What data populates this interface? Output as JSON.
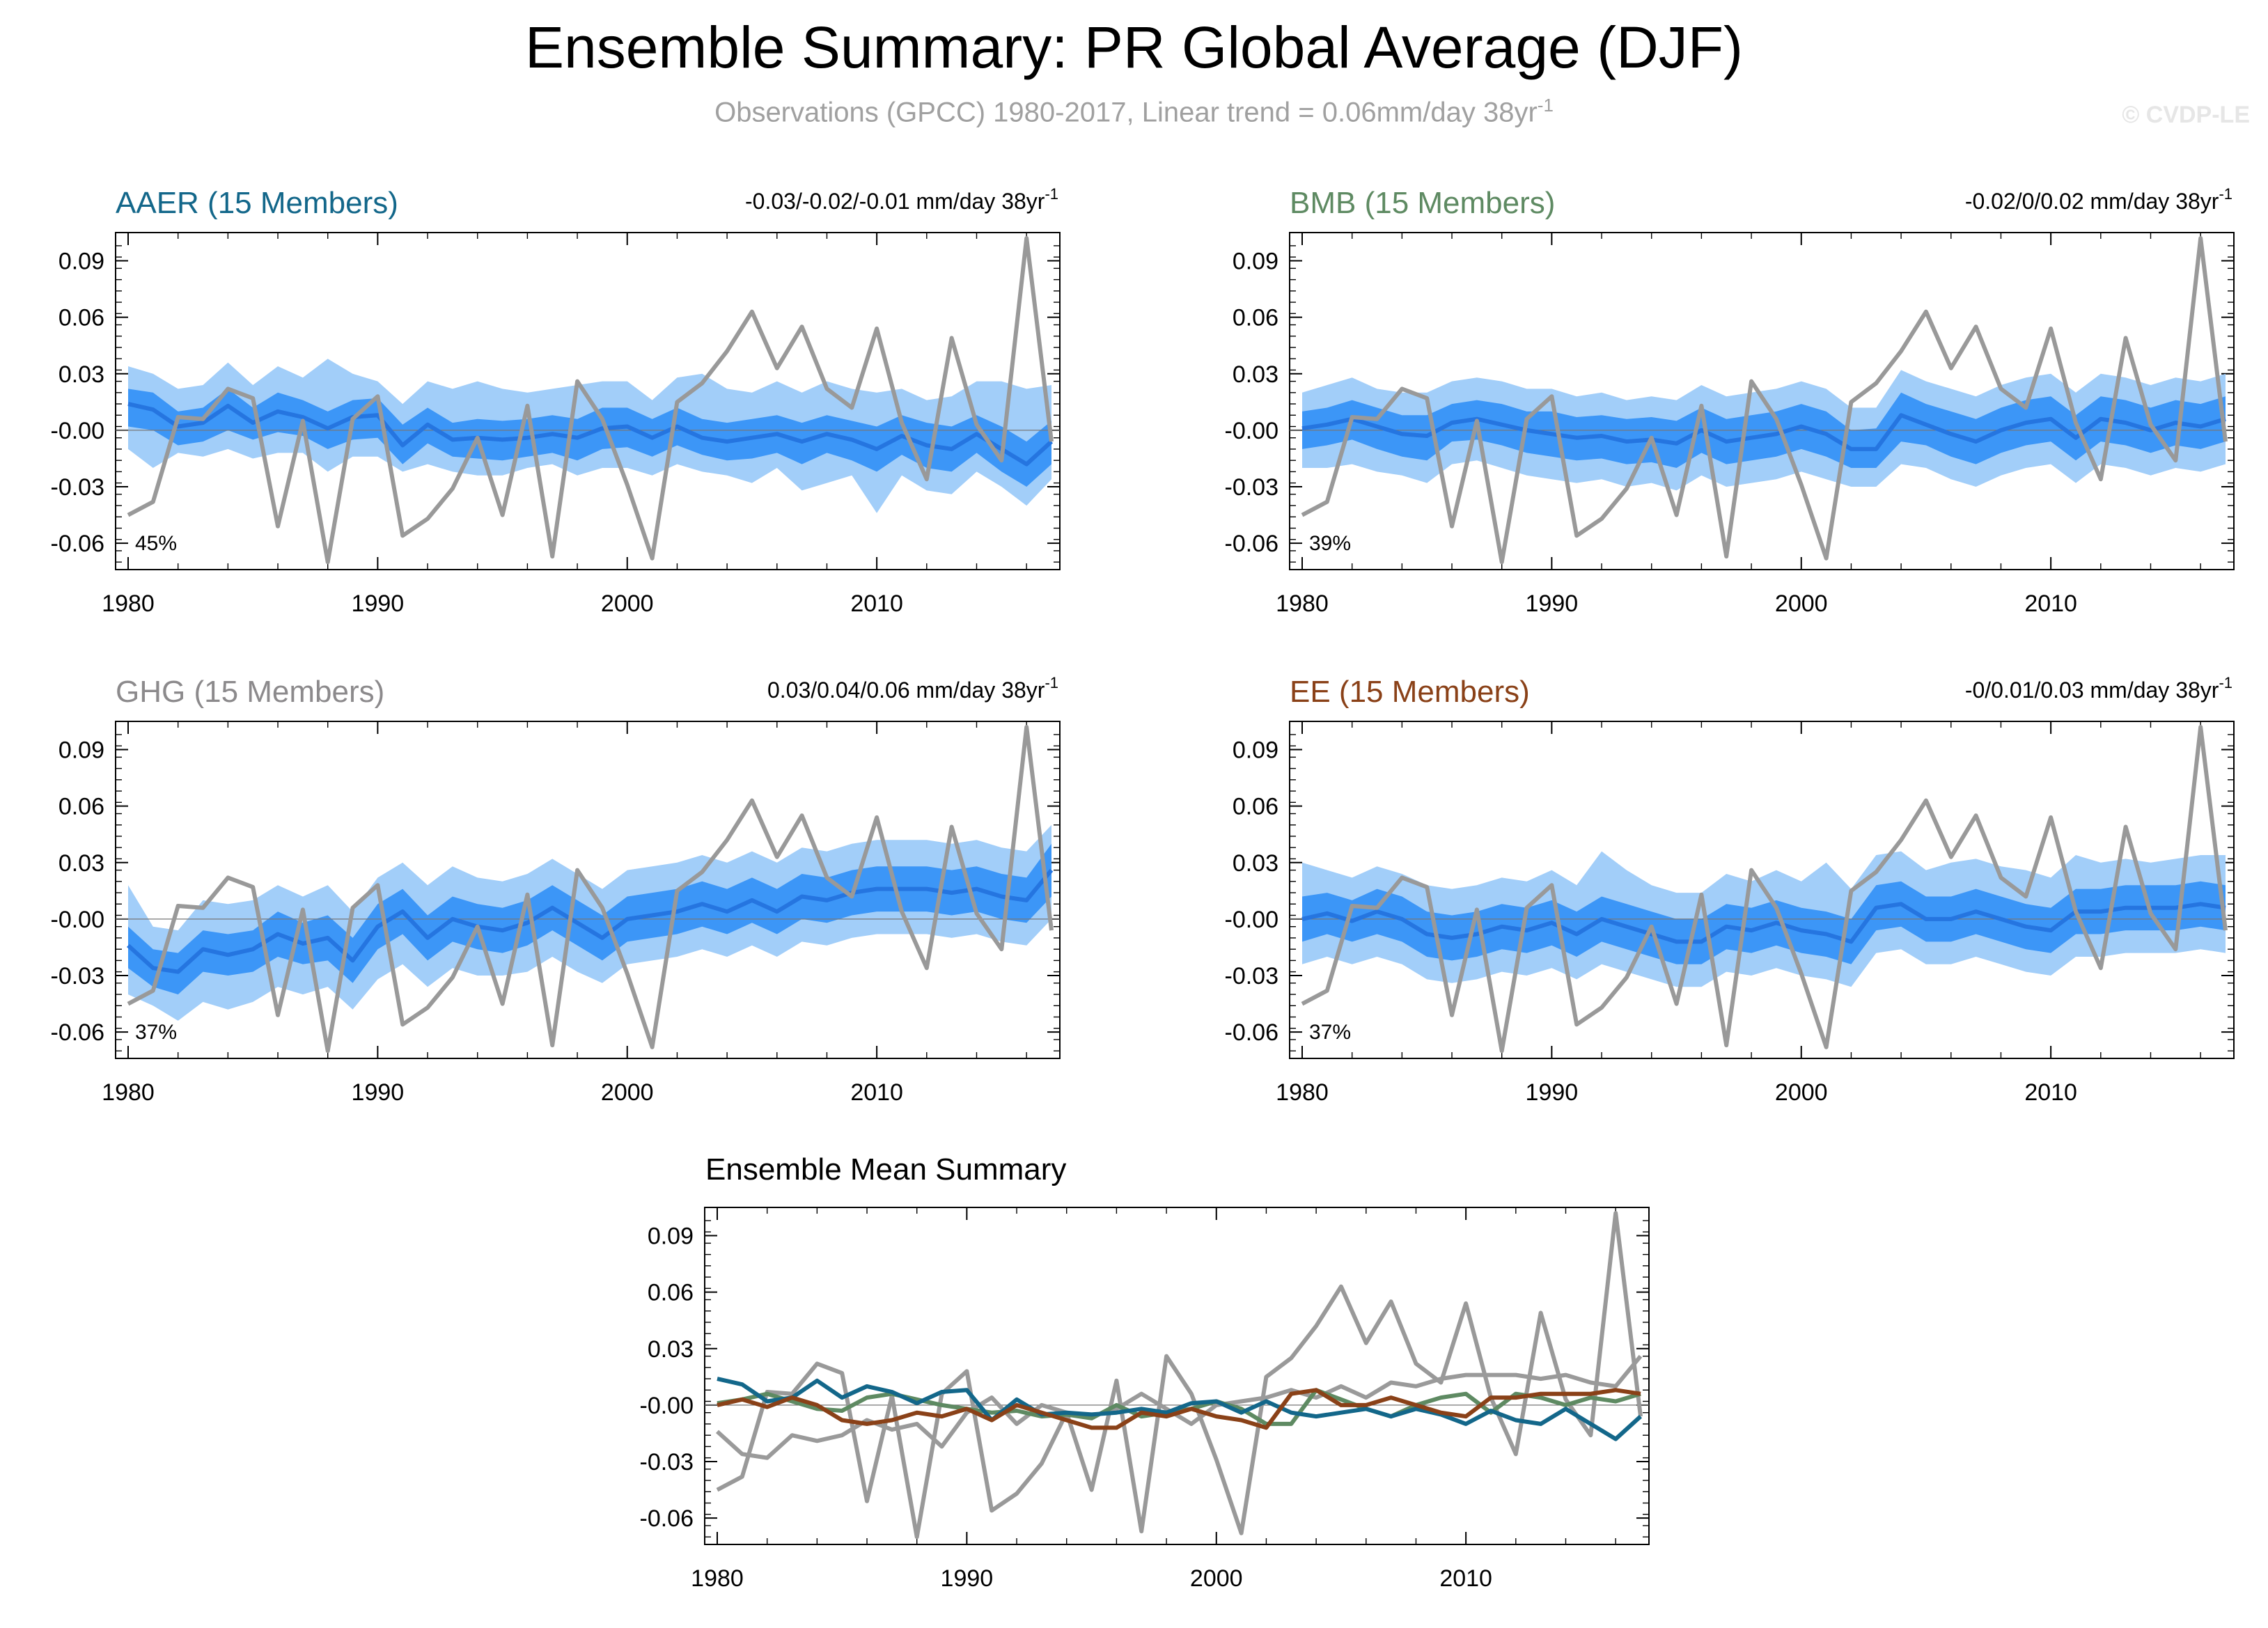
{
  "title": "Ensemble Summary: PR Global Average (DJF)",
  "subtitle": {
    "text": "Observations (GPCC) 1980-2017, Linear trend = 0.06mm/day 38yr",
    "sup": "-1"
  },
  "credit": "© CVDP-LE",
  "colors": {
    "band_outer": "#a2cef9",
    "band_inner": "#3c96f7",
    "ens_mean": "#2575e0",
    "observations": "#999999",
    "AAER": "#13678a",
    "BMB": "#5e8a62",
    "GHG": "#8c8a8c",
    "EE": "#8a4118"
  },
  "chart_data": [
    {
      "id": "AAER",
      "type": "line",
      "title": "AAER (15 Members)",
      "trend_label": "-0.03/-0.02/-0.01 mm/day 38yr",
      "trend_sup": "-1",
      "percent": "45%",
      "x_ticks": [
        "1980",
        "1990",
        "2000",
        "2010"
      ],
      "y_ticks": [
        "0.09",
        "0.06",
        "0.03",
        "-0.00",
        "-0.03",
        "-0.06"
      ],
      "xlim": [
        1980,
        2017
      ],
      "ylim": [
        -0.074,
        0.105
      ],
      "ens_mean": [
        0.014,
        0.011,
        0.002,
        0.004,
        0.013,
        0.004,
        0.01,
        0.007,
        0.001,
        0.007,
        0.008,
        -0.008,
        0.003,
        -0.005,
        -0.004,
        -0.005,
        -0.004,
        -0.002,
        -0.004,
        0.001,
        0.002,
        -0.004,
        0.002,
        -0.004,
        -0.006,
        -0.004,
        -0.002,
        -0.006,
        -0.002,
        -0.005,
        -0.01,
        -0.003,
        -0.008,
        -0.01,
        -0.002,
        -0.01,
        -0.018,
        -0.006
      ],
      "inner_lo": [
        0.002,
        0.0,
        -0.008,
        -0.006,
        0.0,
        -0.005,
        -0.001,
        -0.003,
        -0.01,
        -0.005,
        -0.004,
        -0.018,
        -0.007,
        -0.014,
        -0.015,
        -0.016,
        -0.014,
        -0.012,
        -0.016,
        -0.01,
        -0.009,
        -0.014,
        -0.008,
        -0.013,
        -0.016,
        -0.015,
        -0.012,
        -0.018,
        -0.012,
        -0.016,
        -0.022,
        -0.013,
        -0.02,
        -0.022,
        -0.012,
        -0.022,
        -0.03,
        -0.018
      ],
      "inner_hi": [
        0.022,
        0.02,
        0.01,
        0.012,
        0.022,
        0.012,
        0.02,
        0.016,
        0.01,
        0.016,
        0.017,
        0.003,
        0.012,
        0.004,
        0.006,
        0.005,
        0.006,
        0.008,
        0.006,
        0.012,
        0.012,
        0.006,
        0.012,
        0.006,
        0.004,
        0.006,
        0.008,
        0.004,
        0.008,
        0.005,
        0.002,
        0.008,
        0.004,
        0.002,
        0.008,
        0.002,
        -0.006,
        0.005
      ],
      "outer_lo": [
        -0.01,
        -0.02,
        -0.012,
        -0.014,
        -0.01,
        -0.015,
        -0.012,
        -0.012,
        -0.022,
        -0.014,
        -0.014,
        -0.022,
        -0.018,
        -0.022,
        -0.024,
        -0.024,
        -0.02,
        -0.018,
        -0.024,
        -0.02,
        -0.02,
        -0.024,
        -0.018,
        -0.022,
        -0.024,
        -0.028,
        -0.02,
        -0.032,
        -0.028,
        -0.024,
        -0.044,
        -0.024,
        -0.032,
        -0.034,
        -0.022,
        -0.03,
        -0.04,
        -0.026
      ],
      "outer_hi": [
        0.034,
        0.03,
        0.022,
        0.024,
        0.036,
        0.024,
        0.034,
        0.028,
        0.038,
        0.03,
        0.026,
        0.014,
        0.026,
        0.022,
        0.026,
        0.022,
        0.02,
        0.022,
        0.024,
        0.026,
        0.026,
        0.016,
        0.028,
        0.03,
        0.022,
        0.02,
        0.026,
        0.02,
        0.026,
        0.022,
        0.02,
        0.022,
        0.016,
        0.018,
        0.026,
        0.026,
        0.022,
        0.024
      ]
    },
    {
      "id": "BMB",
      "type": "line",
      "title": "BMB (15 Members)",
      "trend_label": "-0.02/0/0.02 mm/day 38yr",
      "trend_sup": "-1",
      "percent": "39%",
      "x_ticks": [
        "1980",
        "1990",
        "2000",
        "2010"
      ],
      "y_ticks": [
        "0.09",
        "0.06",
        "0.03",
        "-0.00",
        "-0.03",
        "-0.06"
      ],
      "xlim": [
        1980,
        2017
      ],
      "ylim": [
        -0.074,
        0.105
      ],
      "ens_mean": [
        0.001,
        0.003,
        0.006,
        0.002,
        -0.002,
        -0.003,
        0.004,
        0.006,
        0.003,
        0.0,
        -0.002,
        -0.004,
        -0.003,
        -0.006,
        -0.005,
        -0.007,
        0.0,
        -0.006,
        -0.004,
        -0.002,
        0.002,
        -0.002,
        -0.01,
        -0.01,
        0.008,
        0.003,
        -0.002,
        -0.006,
        0.0,
        0.004,
        0.006,
        -0.004,
        0.006,
        0.004,
        0.0,
        0.004,
        0.002,
        0.006
      ],
      "inner_lo": [
        -0.01,
        -0.008,
        -0.005,
        -0.01,
        -0.014,
        -0.016,
        -0.006,
        -0.005,
        -0.008,
        -0.012,
        -0.014,
        -0.016,
        -0.015,
        -0.018,
        -0.017,
        -0.02,
        -0.012,
        -0.018,
        -0.016,
        -0.014,
        -0.01,
        -0.014,
        -0.02,
        -0.02,
        -0.006,
        -0.008,
        -0.014,
        -0.018,
        -0.012,
        -0.008,
        -0.006,
        -0.016,
        -0.006,
        -0.008,
        -0.012,
        -0.008,
        -0.01,
        -0.006
      ],
      "inner_hi": [
        0.01,
        0.012,
        0.016,
        0.012,
        0.008,
        0.008,
        0.014,
        0.016,
        0.014,
        0.01,
        0.01,
        0.007,
        0.008,
        0.006,
        0.007,
        0.005,
        0.012,
        0.006,
        0.008,
        0.01,
        0.014,
        0.01,
        0.0,
        0.001,
        0.02,
        0.014,
        0.01,
        0.006,
        0.012,
        0.016,
        0.018,
        0.008,
        0.018,
        0.016,
        0.012,
        0.016,
        0.014,
        0.018
      ],
      "outer_lo": [
        -0.02,
        -0.02,
        -0.018,
        -0.022,
        -0.024,
        -0.028,
        -0.018,
        -0.016,
        -0.02,
        -0.024,
        -0.026,
        -0.028,
        -0.026,
        -0.03,
        -0.028,
        -0.032,
        -0.024,
        -0.03,
        -0.028,
        -0.026,
        -0.022,
        -0.026,
        -0.03,
        -0.03,
        -0.018,
        -0.02,
        -0.026,
        -0.03,
        -0.024,
        -0.02,
        -0.018,
        -0.028,
        -0.018,
        -0.02,
        -0.024,
        -0.02,
        -0.022,
        -0.018
      ],
      "outer_hi": [
        0.02,
        0.024,
        0.028,
        0.022,
        0.02,
        0.02,
        0.026,
        0.028,
        0.026,
        0.022,
        0.022,
        0.018,
        0.02,
        0.016,
        0.018,
        0.016,
        0.024,
        0.018,
        0.02,
        0.022,
        0.026,
        0.022,
        0.012,
        0.012,
        0.032,
        0.026,
        0.022,
        0.018,
        0.024,
        0.028,
        0.03,
        0.02,
        0.03,
        0.028,
        0.024,
        0.028,
        0.026,
        0.03
      ]
    },
    {
      "id": "GHG",
      "type": "line",
      "title": "GHG (15 Members)",
      "trend_label": "0.03/0.04/0.06 mm/day 38yr",
      "trend_sup": "-1",
      "percent": "37%",
      "x_ticks": [
        "1980",
        "1990",
        "2000",
        "2010"
      ],
      "y_ticks": [
        "0.09",
        "0.06",
        "0.03",
        "-0.00",
        "-0.03",
        "-0.06"
      ],
      "xlim": [
        1980,
        2017
      ],
      "ylim": [
        -0.074,
        0.105
      ],
      "ens_mean": [
        -0.014,
        -0.026,
        -0.028,
        -0.016,
        -0.019,
        -0.016,
        -0.008,
        -0.013,
        -0.01,
        -0.022,
        -0.004,
        0.004,
        -0.01,
        0.0,
        -0.004,
        -0.006,
        -0.002,
        0.006,
        -0.002,
        -0.01,
        0.0,
        0.002,
        0.004,
        0.008,
        0.004,
        0.01,
        0.004,
        0.012,
        0.01,
        0.014,
        0.016,
        0.016,
        0.016,
        0.014,
        0.016,
        0.012,
        0.01,
        0.026
      ],
      "inner_lo": [
        -0.026,
        -0.036,
        -0.04,
        -0.028,
        -0.03,
        -0.028,
        -0.02,
        -0.024,
        -0.022,
        -0.034,
        -0.016,
        -0.008,
        -0.022,
        -0.012,
        -0.016,
        -0.018,
        -0.014,
        -0.006,
        -0.014,
        -0.022,
        -0.012,
        -0.01,
        -0.008,
        -0.004,
        -0.008,
        -0.002,
        -0.008,
        0.0,
        -0.002,
        0.002,
        0.004,
        0.004,
        0.004,
        0.002,
        0.004,
        0.0,
        -0.002,
        0.012
      ],
      "inner_hi": [
        -0.004,
        -0.016,
        -0.018,
        -0.006,
        -0.008,
        -0.006,
        0.004,
        -0.002,
        0.002,
        -0.01,
        0.008,
        0.016,
        0.002,
        0.012,
        0.008,
        0.006,
        0.01,
        0.018,
        0.01,
        0.002,
        0.012,
        0.014,
        0.016,
        0.02,
        0.016,
        0.022,
        0.016,
        0.024,
        0.022,
        0.026,
        0.028,
        0.028,
        0.028,
        0.026,
        0.028,
        0.024,
        0.022,
        0.04
      ],
      "outer_lo": [
        -0.04,
        -0.046,
        -0.054,
        -0.044,
        -0.048,
        -0.044,
        -0.036,
        -0.04,
        -0.036,
        -0.048,
        -0.032,
        -0.024,
        -0.036,
        -0.026,
        -0.03,
        -0.03,
        -0.028,
        -0.02,
        -0.028,
        -0.034,
        -0.024,
        -0.022,
        -0.02,
        -0.016,
        -0.02,
        -0.014,
        -0.02,
        -0.012,
        -0.014,
        -0.01,
        -0.008,
        -0.008,
        -0.008,
        -0.01,
        -0.008,
        -0.012,
        -0.014,
        0.0
      ],
      "outer_hi": [
        0.018,
        -0.004,
        -0.006,
        0.01,
        0.008,
        0.01,
        0.018,
        0.012,
        0.018,
        0.004,
        0.022,
        0.03,
        0.018,
        0.028,
        0.022,
        0.02,
        0.024,
        0.032,
        0.024,
        0.016,
        0.026,
        0.028,
        0.03,
        0.034,
        0.03,
        0.036,
        0.03,
        0.038,
        0.036,
        0.04,
        0.042,
        0.042,
        0.042,
        0.04,
        0.042,
        0.038,
        0.036,
        0.05
      ]
    },
    {
      "id": "EE",
      "type": "line",
      "title": "EE (15 Members)",
      "trend_label": "-0/0.01/0.03 mm/day 38yr",
      "trend_sup": "-1",
      "percent": "37%",
      "x_ticks": [
        "1980",
        "1990",
        "2000",
        "2010"
      ],
      "y_ticks": [
        "0.09",
        "0.06",
        "0.03",
        "-0.00",
        "-0.03",
        "-0.06"
      ],
      "xlim": [
        1980,
        2017
      ],
      "ylim": [
        -0.074,
        0.105
      ],
      "ens_mean": [
        0.0,
        0.003,
        -0.001,
        0.004,
        0.0,
        -0.008,
        -0.01,
        -0.008,
        -0.004,
        -0.006,
        -0.002,
        -0.008,
        0.0,
        -0.004,
        -0.008,
        -0.012,
        -0.012,
        -0.004,
        -0.006,
        -0.002,
        -0.006,
        -0.008,
        -0.012,
        0.006,
        0.008,
        0.0,
        0.0,
        0.004,
        0.0,
        -0.004,
        -0.006,
        0.004,
        0.004,
        0.006,
        0.006,
        0.006,
        0.008,
        0.006
      ],
      "inner_lo": [
        -0.012,
        -0.008,
        -0.012,
        -0.008,
        -0.012,
        -0.02,
        -0.022,
        -0.02,
        -0.016,
        -0.018,
        -0.014,
        -0.02,
        -0.012,
        -0.016,
        -0.02,
        -0.024,
        -0.024,
        -0.016,
        -0.018,
        -0.014,
        -0.018,
        -0.02,
        -0.024,
        -0.006,
        -0.004,
        -0.012,
        -0.012,
        -0.008,
        -0.012,
        -0.016,
        -0.018,
        -0.008,
        -0.008,
        -0.006,
        -0.006,
        -0.006,
        -0.004,
        -0.006
      ],
      "inner_hi": [
        0.012,
        0.014,
        0.01,
        0.016,
        0.012,
        0.004,
        0.002,
        0.004,
        0.008,
        0.006,
        0.01,
        0.004,
        0.012,
        0.008,
        0.004,
        0.0,
        0.0,
        0.008,
        0.006,
        0.01,
        0.006,
        0.004,
        0.0,
        0.018,
        0.02,
        0.012,
        0.012,
        0.016,
        0.012,
        0.008,
        0.006,
        0.016,
        0.016,
        0.018,
        0.018,
        0.018,
        0.02,
        0.018
      ],
      "outer_lo": [
        -0.024,
        -0.02,
        -0.024,
        -0.02,
        -0.024,
        -0.032,
        -0.034,
        -0.032,
        -0.028,
        -0.03,
        -0.026,
        -0.032,
        -0.024,
        -0.028,
        -0.032,
        -0.036,
        -0.036,
        -0.028,
        -0.03,
        -0.026,
        -0.03,
        -0.032,
        -0.036,
        -0.018,
        -0.016,
        -0.024,
        -0.024,
        -0.02,
        -0.024,
        -0.028,
        -0.03,
        -0.02,
        -0.02,
        -0.018,
        -0.018,
        -0.018,
        -0.016,
        -0.018
      ],
      "outer_hi": [
        0.03,
        0.026,
        0.022,
        0.028,
        0.024,
        0.018,
        0.016,
        0.018,
        0.022,
        0.02,
        0.026,
        0.018,
        0.036,
        0.026,
        0.018,
        0.014,
        0.014,
        0.024,
        0.02,
        0.026,
        0.02,
        0.03,
        0.016,
        0.034,
        0.036,
        0.026,
        0.03,
        0.032,
        0.028,
        0.026,
        0.022,
        0.034,
        0.03,
        0.032,
        0.03,
        0.032,
        0.034,
        0.034
      ]
    },
    {
      "id": "MEAN",
      "type": "line",
      "title": "Ensemble Mean Summary",
      "x_ticks": [
        "1980",
        "1990",
        "2000",
        "2010"
      ],
      "y_ticks": [
        "0.09",
        "0.06",
        "0.03",
        "-0.00",
        "-0.03",
        "-0.06"
      ],
      "xlim": [
        1980,
        2017
      ],
      "ylim": [
        -0.074,
        0.105
      ],
      "series": [
        {
          "name": "AAER",
          "color_key": "AAER"
        },
        {
          "name": "BMB",
          "color_key": "BMB"
        },
        {
          "name": "GHG",
          "color_key": "GHG"
        },
        {
          "name": "EE",
          "color_key": "EE"
        }
      ]
    }
  ],
  "observations": {
    "name": "Observations (GPCC)",
    "years": [
      1980,
      2017
    ],
    "values": [
      -0.045,
      -0.038,
      0.007,
      0.006,
      0.022,
      0.017,
      -0.051,
      0.005,
      -0.07,
      0.006,
      0.018,
      -0.056,
      -0.047,
      -0.031,
      -0.004,
      -0.045,
      0.013,
      -0.067,
      0.026,
      0.006,
      -0.029,
      -0.068,
      0.015,
      0.025,
      0.042,
      0.063,
      0.033,
      0.055,
      0.022,
      0.012,
      0.054,
      0.004,
      -0.026,
      0.049,
      0.003,
      -0.016,
      0.102,
      -0.006
    ]
  }
}
